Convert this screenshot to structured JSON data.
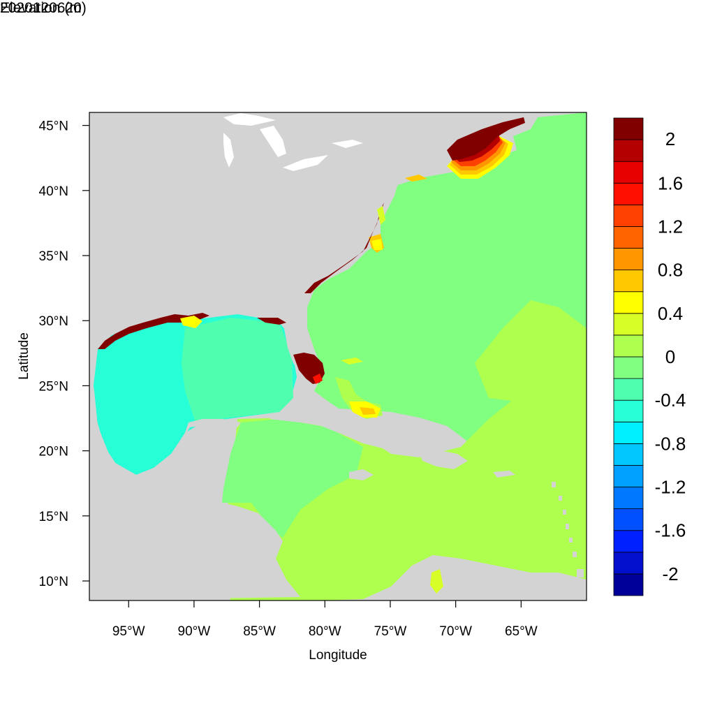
{
  "left_title": "2020120620",
  "right_title": "Elevation (m)",
  "x_axis": {
    "title": "Longitude",
    "ticks": [
      "95°W",
      "90°W",
      "85°W",
      "80°W",
      "75°W",
      "70°W",
      "65°W"
    ],
    "tick_values": [
      -95,
      -90,
      -85,
      -80,
      -75,
      -70,
      -65
    ],
    "range": [
      -98,
      -60
    ]
  },
  "y_axis": {
    "title": "Latitude",
    "ticks": [
      "45°N",
      "40°N",
      "35°N",
      "30°N",
      "25°N",
      "20°N",
      "15°N",
      "10°N"
    ],
    "tick_values": [
      45,
      40,
      35,
      30,
      25,
      20,
      15,
      10
    ],
    "range": [
      8.5,
      46
    ]
  },
  "colorbar": {
    "colors": [
      "#000099",
      "#0010cc",
      "#0020ff",
      "#0050ff",
      "#0078ff",
      "#00a0ff",
      "#00c8ff",
      "#00f0ff",
      "#27ffd7",
      "#4fffaf",
      "#80ff80",
      "#afff4f",
      "#d7ff27",
      "#ffff00",
      "#ffc800",
      "#ff9600",
      "#ff6400",
      "#ff4000",
      "#ff1000",
      "#e60000",
      "#b40000",
      "#800000"
    ],
    "labels": [
      "2",
      "1.6",
      "1.2",
      "0.8",
      "0.4",
      "0",
      "-0.4",
      "-0.8",
      "-1.2",
      "-1.6",
      "-2"
    ]
  },
  "palette": {
    "land": "#d3d3d3",
    "gulf": "#27ffd7",
    "atlantic": "#80ff80",
    "caribbean": "#afff4f",
    "high_surge": "#800000"
  }
}
